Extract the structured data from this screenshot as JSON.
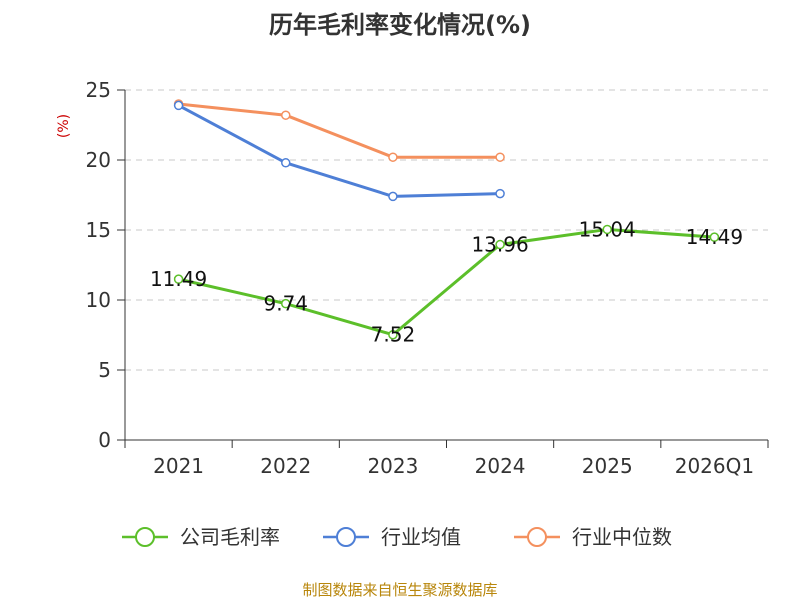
{
  "chart_data": {
    "type": "line",
    "title": "历年毛利率变化情况(%)",
    "ylabel": "(%)",
    "ylim": [
      0,
      25
    ],
    "yticks": [
      0,
      5,
      10,
      15,
      20,
      25
    ],
    "categories": [
      "2021",
      "2022",
      "2023",
      "2024",
      "2025",
      "2026Q1"
    ],
    "grid": true,
    "legend_position": "bottom",
    "series": [
      {
        "name": "公司毛利率",
        "color": "#5cbf2a",
        "values": [
          11.49,
          9.74,
          7.52,
          13.96,
          15.04,
          14.49
        ],
        "labels": [
          "11.49",
          "9.74",
          "7.52",
          "13.96",
          "15.04",
          "14.49"
        ]
      },
      {
        "name": "行业均值",
        "color": "#4e7fd6",
        "values": [
          23.9,
          19.8,
          17.4,
          17.6,
          null,
          null
        ]
      },
      {
        "name": "行业中位数",
        "color": "#f4905e",
        "values": [
          24.0,
          23.2,
          20.2,
          20.2,
          null,
          null
        ]
      }
    ],
    "source": "制图数据来自恒生聚源数据库"
  }
}
